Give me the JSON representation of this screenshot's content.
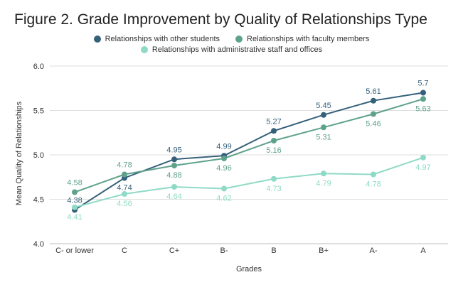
{
  "chart_data": {
    "type": "line",
    "title": "Figure 2. Grade Improvement by Quality of Relationships Type",
    "xlabel": "Grades",
    "ylabel": "Mean Quality of Relationships",
    "categories": [
      "C- or lower",
      "C",
      "C+",
      "B-",
      "B",
      "B+",
      "A-",
      "A"
    ],
    "ylim": [
      4.0,
      6.0
    ],
    "yticks": [
      "4.0",
      "4.5",
      "5.0",
      "5.5",
      "6.0"
    ],
    "grid": true,
    "legend_position": "top",
    "series": [
      {
        "name": "Relationships with other students",
        "color": "#34607a",
        "values": [
          4.38,
          4.74,
          4.95,
          4.99,
          5.27,
          5.45,
          5.61,
          5.7
        ],
        "labels": [
          "4.38",
          "4.74",
          "4.95",
          "4.99",
          "5.27",
          "5.45",
          "5.61",
          "5.7"
        ],
        "label_pos": [
          "above",
          "below",
          "above",
          "above",
          "above",
          "above",
          "above",
          "above"
        ]
      },
      {
        "name": "Relationships with faculty members",
        "color": "#5fa28c",
        "values": [
          4.58,
          4.78,
          4.88,
          4.96,
          5.16,
          5.31,
          5.46,
          5.63
        ],
        "labels": [
          "4.58",
          "4.78",
          "4.88",
          "4.96",
          "5.16",
          "5.31",
          "5.46",
          "5.63"
        ],
        "label_pos": [
          "above",
          "above",
          "below",
          "below",
          "below",
          "below",
          "below",
          "below"
        ]
      },
      {
        "name": "Relationships with administrative staff and offices",
        "color": "#8fdac6",
        "values": [
          4.41,
          4.56,
          4.64,
          4.62,
          4.73,
          4.79,
          4.78,
          4.97
        ],
        "labels": [
          "4.41",
          "4.56",
          "4.64",
          "4.62",
          "4.73",
          "4.79",
          "4.78",
          "4.97"
        ],
        "label_pos": [
          "below",
          "below",
          "below",
          "below",
          "below",
          "below",
          "below",
          "below"
        ]
      }
    ]
  }
}
